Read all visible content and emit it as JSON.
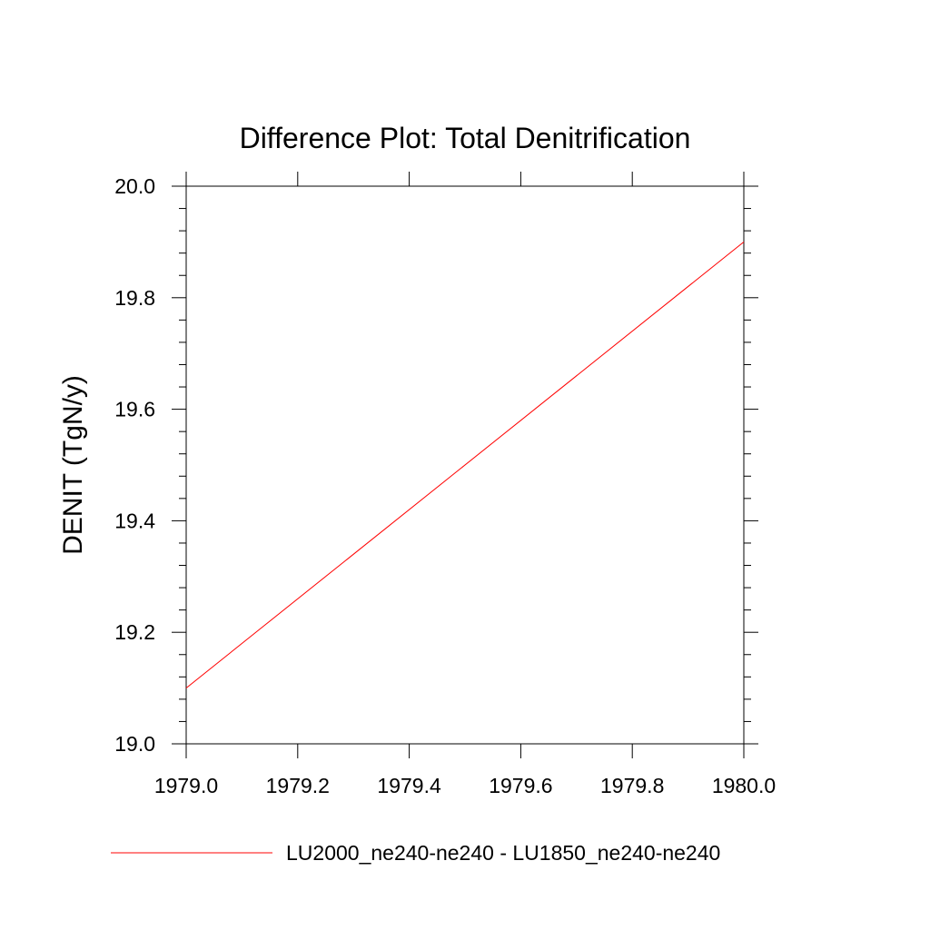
{
  "chart_data": {
    "type": "line",
    "title": "Difference Plot: Total Denitrification",
    "xlabel": "",
    "ylabel": "DENIT  (TgN/y)",
    "xlim": [
      1979.0,
      1980.0
    ],
    "ylim": [
      19.0,
      20.0
    ],
    "x_ticks": [
      "1979.0",
      "1979.2",
      "1979.4",
      "1979.6",
      "1979.8",
      "1980.0"
    ],
    "y_ticks": [
      "19.0",
      "19.2",
      "19.4",
      "19.6",
      "19.8",
      "20.0"
    ],
    "grid": false,
    "legend_position": "bottom",
    "series": [
      {
        "name": "LU2000_ne240-ne240 - LU1850_ne240-ne240",
        "color": "#ff0000",
        "x": [
          1979.0,
          1980.0
        ],
        "y": [
          19.1,
          19.9
        ]
      }
    ]
  }
}
